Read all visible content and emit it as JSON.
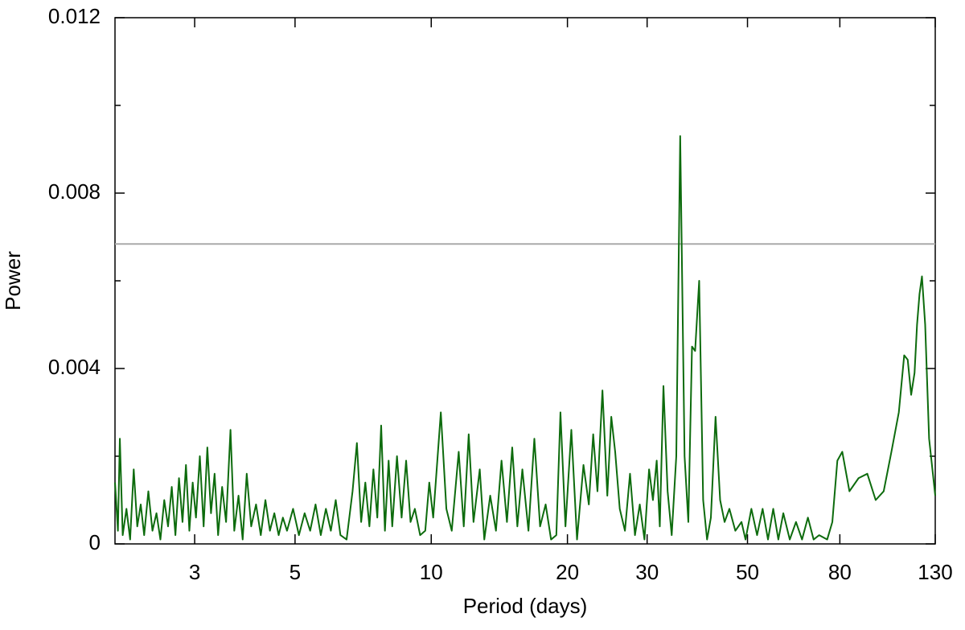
{
  "chart_data": {
    "type": "line",
    "x_label": "Period (days)",
    "y_label": "Power",
    "x_log": true,
    "xlim": [
      2,
      130
    ],
    "xticks": [
      3,
      5,
      10,
      20,
      30,
      50,
      80,
      130
    ],
    "ylim": [
      0,
      0.012
    ],
    "yticks": [
      0,
      0.004,
      0.008,
      0.012
    ],
    "yminorticks": [
      0.002,
      0.006,
      0.01
    ],
    "color": "#0d6b0d",
    "hline": {
      "value": 0.00684,
      "color": "#aaaaaa"
    },
    "x": [
      2.0,
      2.03,
      2.05,
      2.08,
      2.12,
      2.16,
      2.2,
      2.24,
      2.28,
      2.32,
      2.37,
      2.42,
      2.47,
      2.52,
      2.57,
      2.62,
      2.67,
      2.72,
      2.77,
      2.82,
      2.87,
      2.92,
      2.97,
      3.02,
      3.08,
      3.14,
      3.2,
      3.26,
      3.32,
      3.38,
      3.45,
      3.52,
      3.6,
      3.67,
      3.75,
      3.83,
      3.91,
      4.0,
      4.1,
      4.2,
      4.3,
      4.4,
      4.5,
      4.6,
      4.7,
      4.8,
      4.95,
      5.1,
      5.25,
      5.4,
      5.55,
      5.7,
      5.85,
      6.0,
      6.15,
      6.3,
      6.5,
      6.7,
      6.85,
      7.0,
      7.15,
      7.3,
      7.45,
      7.6,
      7.75,
      7.9,
      8.05,
      8.2,
      8.4,
      8.6,
      8.8,
      9.0,
      9.2,
      9.45,
      9.7,
      9.9,
      10.1,
      10.5,
      10.8,
      11.1,
      11.5,
      11.8,
      12.1,
      12.4,
      12.8,
      13.1,
      13.5,
      13.9,
      14.3,
      14.7,
      15.1,
      15.5,
      15.9,
      16.4,
      16.9,
      17.4,
      17.9,
      18.4,
      18.9,
      19.3,
      19.8,
      20.4,
      21.0,
      21.7,
      22.3,
      22.8,
      23.3,
      23.9,
      24.5,
      25.0,
      25.5,
      26.1,
      26.8,
      27.5,
      28.2,
      28.9,
      29.6,
      30.3,
      30.9,
      31.5,
      32.0,
      32.6,
      33.3,
      34.0,
      34.8,
      35.5,
      36.3,
      37.0,
      37.7,
      38.3,
      39.1,
      39.9,
      40.7,
      41.5,
      42.5,
      43.5,
      44.5,
      45.6,
      47.0,
      48.5,
      49.5,
      51.0,
      52.5,
      54.0,
      55.5,
      57.0,
      58.5,
      60.0,
      62.0,
      64.0,
      66.0,
      68.0,
      70.0,
      72.0,
      75.0,
      77.0,
      79.0,
      81.0,
      84.0,
      88.0,
      92.0,
      96.0,
      100,
      104,
      108,
      111,
      113,
      115,
      117,
      118.5,
      120,
      121.5,
      123.5,
      126,
      130
    ],
    "values": [
      0.0014,
      0.0003,
      0.0024,
      0.0002,
      0.0008,
      0.0001,
      0.0017,
      0.0004,
      0.0009,
      0.0002,
      0.0012,
      0.0003,
      0.0007,
      0.0001,
      0.001,
      0.0004,
      0.0013,
      0.0002,
      0.0015,
      0.0005,
      0.0018,
      0.0003,
      0.0014,
      0.0006,
      0.002,
      0.0004,
      0.0022,
      0.0007,
      0.0016,
      0.0002,
      0.0013,
      0.0005,
      0.0026,
      0.0003,
      0.0011,
      0.0001,
      0.0016,
      0.0004,
      0.0009,
      0.0002,
      0.001,
      0.0003,
      0.0007,
      0.0002,
      0.0006,
      0.0003,
      0.0008,
      0.0002,
      0.0007,
      0.0003,
      0.0009,
      0.0002,
      0.0008,
      0.0003,
      0.001,
      0.0002,
      0.0001,
      0.0012,
      0.0023,
      0.0005,
      0.0014,
      0.0004,
      0.0017,
      0.0006,
      0.0027,
      0.0003,
      0.0019,
      0.0004,
      0.002,
      0.0006,
      0.0019,
      0.0005,
      0.0008,
      0.0002,
      0.0003,
      0.0014,
      0.0006,
      0.003,
      0.0008,
      0.0003,
      0.0021,
      0.0004,
      0.0025,
      0.0005,
      0.0017,
      0.0001,
      0.0011,
      0.0003,
      0.0019,
      0.0005,
      0.0022,
      0.0004,
      0.0017,
      0.0003,
      0.0024,
      0.0004,
      0.0009,
      0.0001,
      0.0002,
      0.003,
      0.0004,
      0.0026,
      0.0001,
      0.0018,
      0.0009,
      0.0025,
      0.0012,
      0.0035,
      0.0011,
      0.0029,
      0.0021,
      0.0008,
      0.0003,
      0.0016,
      0.0002,
      0.0009,
      0.0001,
      0.0017,
      0.001,
      0.0019,
      0.0004,
      0.0036,
      0.0012,
      0.0002,
      0.002,
      0.0093,
      0.002,
      0.0005,
      0.0045,
      0.0044,
      0.006,
      0.001,
      0.0001,
      0.0006,
      0.0029,
      0.001,
      0.0005,
      0.0008,
      0.0003,
      0.0005,
      0.0001,
      0.0008,
      0.0002,
      0.0008,
      0.0001,
      0.0008,
      0.0001,
      0.0007,
      0.0001,
      0.0005,
      0.0001,
      0.0006,
      0.0001,
      0.0002,
      0.0001,
      0.0005,
      0.0019,
      0.0021,
      0.0012,
      0.0015,
      0.0016,
      0.001,
      0.0012,
      0.0021,
      0.003,
      0.0043,
      0.0042,
      0.0034,
      0.0039,
      0.005,
      0.0057,
      0.0061,
      0.005,
      0.0024,
      0.0011
    ]
  }
}
